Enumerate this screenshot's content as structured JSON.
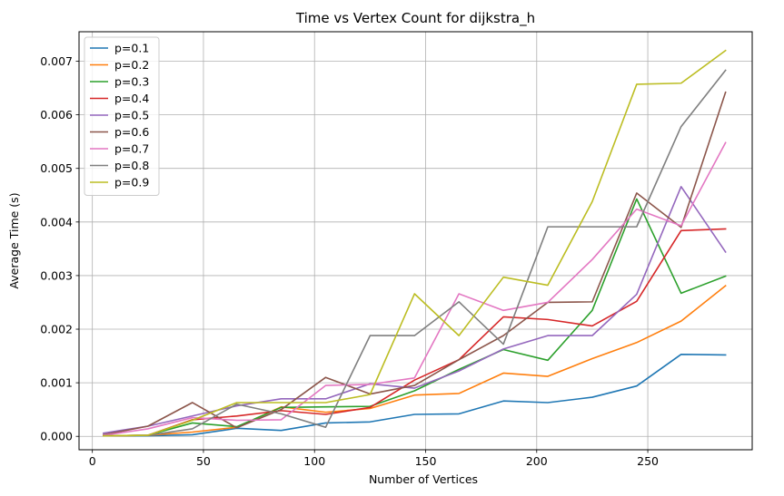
{
  "chart_data": {
    "type": "line",
    "title": "Time vs Vertex Count for dijkstra_h",
    "xlabel": "Number of Vertices",
    "ylabel": "Average Time (s)",
    "xlim": [
      -6,
      297
    ],
    "ylim": [
      -0.00025,
      0.00755
    ],
    "x_ticks": [
      0,
      50,
      100,
      150,
      200,
      250
    ],
    "x_tick_labels": [
      "0",
      "50",
      "100",
      "150",
      "200",
      "250"
    ],
    "y_ticks": [
      0,
      0.001,
      0.002,
      0.003,
      0.004,
      0.005,
      0.006,
      0.007
    ],
    "y_tick_labels": [
      "0.000",
      "0.001",
      "0.002",
      "0.003",
      "0.004",
      "0.005",
      "0.006",
      "0.007"
    ],
    "grid": true,
    "legend_position": "top-left",
    "x": [
      5,
      25,
      45,
      65,
      85,
      105,
      125,
      145,
      165,
      185,
      205,
      225,
      245,
      265,
      285
    ],
    "series": [
      {
        "name": "p=0.1",
        "color": "#1f77b4",
        "values": [
          1e-05,
          1e-05,
          3e-05,
          0.00015,
          0.00011,
          0.00025,
          0.00027,
          0.00041,
          0.00042,
          0.00066,
          0.00063,
          0.00073,
          0.00094,
          0.00153,
          0.00152
        ]
      },
      {
        "name": "p=0.2",
        "color": "#ff7f0e",
        "values": [
          1e-05,
          2e-05,
          8e-05,
          0.00017,
          0.00055,
          0.00045,
          0.00052,
          0.00077,
          0.0008,
          0.00118,
          0.00112,
          0.00145,
          0.00175,
          0.00215,
          0.00281
        ]
      },
      {
        "name": "p=0.3",
        "color": "#2ca02c",
        "values": [
          1e-05,
          2e-05,
          0.00025,
          0.00018,
          0.00054,
          0.00055,
          0.00056,
          0.00085,
          0.00125,
          0.00162,
          0.00142,
          0.00235,
          0.00443,
          0.00267,
          0.00299
        ]
      },
      {
        "name": "p=0.4",
        "color": "#d62728",
        "values": [
          1e-05,
          2e-05,
          0.00031,
          0.00038,
          0.00048,
          0.00041,
          0.00054,
          0.00105,
          0.00143,
          0.00223,
          0.00218,
          0.00206,
          0.00252,
          0.00384,
          0.00387
        ]
      },
      {
        "name": "p=0.5",
        "color": "#9467bd",
        "values": [
          6e-05,
          0.00019,
          0.00038,
          0.00057,
          0.0007,
          0.0007,
          0.00098,
          0.0009,
          0.00122,
          0.00163,
          0.00188,
          0.00188,
          0.00265,
          0.00466,
          0.00344
        ]
      },
      {
        "name": "p=0.6",
        "color": "#8c564b",
        "values": [
          3e-05,
          0.00019,
          0.00063,
          0.00016,
          0.0005,
          0.0011,
          0.00079,
          0.00095,
          0.00143,
          0.00188,
          0.0025,
          0.00251,
          0.00454,
          0.0039,
          0.00642
        ]
      },
      {
        "name": "p=0.7",
        "color": "#e377c2",
        "values": [
          2e-05,
          0.00014,
          0.00035,
          0.0003,
          0.00031,
          0.00095,
          0.00097,
          0.00109,
          0.00266,
          0.00235,
          0.0025,
          0.0033,
          0.00424,
          0.00393,
          0.00548
        ]
      },
      {
        "name": "p=0.8",
        "color": "#7f7f7f",
        "values": [
          1e-05,
          2e-05,
          0.00014,
          0.0006,
          0.00042,
          0.00017,
          0.00188,
          0.00188,
          0.00251,
          0.00172,
          0.00391,
          0.00391,
          0.00391,
          0.00578,
          0.00683
        ]
      },
      {
        "name": "p=0.9",
        "color": "#bcbd22",
        "values": [
          1e-05,
          2e-05,
          0.0003,
          0.00063,
          0.00063,
          0.00063,
          0.00078,
          0.00266,
          0.00188,
          0.00297,
          0.00282,
          0.00438,
          0.00657,
          0.00659,
          0.0072
        ]
      }
    ]
  }
}
